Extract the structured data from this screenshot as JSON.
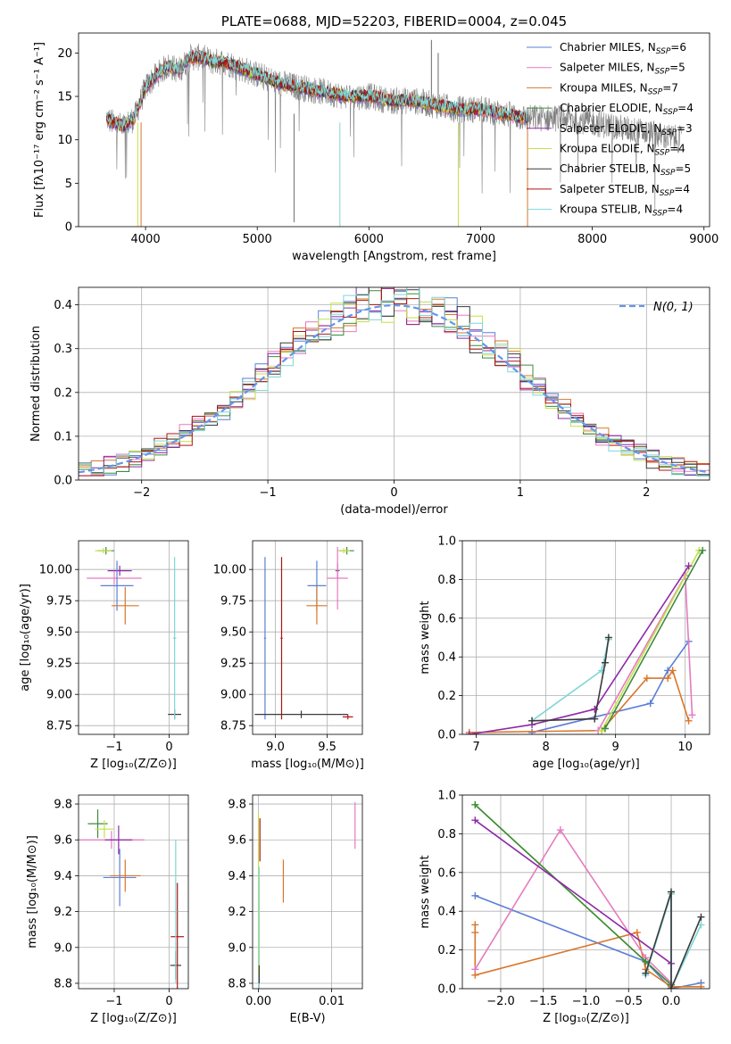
{
  "colors": {
    "chabrier_miles": "#5b7fd6",
    "salpeter_miles": "#e57bbf",
    "kroupa_miles": "#d9762a",
    "chabrier_elodie": "#3d8b3d",
    "salpeter_elodie": "#8e2aa8",
    "kroupa_elodie": "#c3e04a",
    "chabrier_stelib": "#3a3a3a",
    "salpeter_stelib": "#b01515",
    "kroupa_stelib": "#7fd6d6",
    "gaussian": "#6495ed",
    "data": "#808080"
  },
  "chart_data": [
    {
      "id": "spectrum",
      "type": "line",
      "title": "PLATE=0688, MJD=52203, FIBERID=0004, z=0.045",
      "xlabel": "wavelength [Angstrom, rest frame]",
      "ylabel": "Flux [fλ10⁻¹⁷ erg cm⁻² s⁻¹ A⁻¹]",
      "xlim": [
        3400,
        9050
      ],
      "ylim": [
        0,
        22.3
      ],
      "xticks": [
        "4000",
        "5000",
        "6000",
        "7000",
        "8000",
        "9000"
      ],
      "yticks": [
        "0",
        "5",
        "10",
        "15",
        "20"
      ],
      "legend_position": "top-right",
      "legend": [
        {
          "label": "Chabrier MILES, N",
          "sub": "SSP",
          "suffix": "=6",
          "color": "chabrier_miles"
        },
        {
          "label": "Salpeter MILES, N",
          "sub": "SSP",
          "suffix": "=5",
          "color": "salpeter_miles"
        },
        {
          "label": "Kroupa MILES, N",
          "sub": "SSP",
          "suffix": "=7",
          "color": "kroupa_miles"
        },
        {
          "label": "Chabrier ELODIE, N",
          "sub": "SSP",
          "suffix": "=4",
          "color": "chabrier_elodie"
        },
        {
          "label": "Salpeter ELODIE, N",
          "sub": "SSP",
          "suffix": "=3",
          "color": "salpeter_elodie"
        },
        {
          "label": "Kroupa ELODIE, N",
          "sub": "SSP",
          "suffix": "=4",
          "color": "kroupa_elodie"
        },
        {
          "label": "Chabrier STELIB, N",
          "sub": "SSP",
          "suffix": "=5",
          "color": "chabrier_stelib"
        },
        {
          "label": "Salpeter STELIB, N",
          "sub": "SSP",
          "suffix": "=4",
          "color": "salpeter_stelib"
        },
        {
          "label": "Kroupa STELIB, N",
          "sub": "SSP",
          "suffix": "=4",
          "color": "kroupa_stelib"
        }
      ],
      "continuum": {
        "x": [
          3650,
          3700,
          3800,
          3900,
          4000,
          4100,
          4200,
          4300,
          4400,
          4500,
          4600,
          4700,
          4800,
          4900,
          5000,
          5200,
          5400,
          5600,
          5800,
          6000,
          6200,
          6400,
          6600,
          6800,
          7000,
          7200,
          7400,
          7600,
          7800,
          8000,
          8200,
          8400,
          8600,
          8800
        ],
        "y": [
          12.5,
          12.0,
          11.5,
          12.5,
          16.0,
          17.5,
          18.5,
          18.0,
          19.5,
          19.5,
          19.0,
          19.0,
          18.5,
          18.0,
          17.5,
          16.5,
          16.0,
          15.5,
          15.0,
          15.0,
          14.5,
          14.5,
          14.0,
          13.5,
          13.5,
          13.0,
          12.5,
          12.5,
          12.5,
          12.0,
          11.5,
          11.0,
          10.5,
          10.0
        ]
      },
      "model_end": 7420
    },
    {
      "id": "residuals",
      "type": "histogram",
      "xlabel": "(data-model)/error",
      "ylabel": "Normed distribution",
      "xlim": [
        -2.5,
        2.5
      ],
      "ylim": [
        0,
        0.44
      ],
      "xticks": [
        "−2",
        "−1",
        "0",
        "1",
        "2"
      ],
      "yticks": [
        "0.0",
        "0.1",
        "0.2",
        "0.3",
        "0.4"
      ],
      "bin_width": 0.1,
      "legend_position": "top-right",
      "gaussian_label": "N(0, 1)"
    },
    {
      "id": "age_vs_Z",
      "type": "errorbar",
      "xlabel": "Z [log₁₀(Z/Z⊙)]",
      "ylabel": "age  [log₁₀(age/yr)]",
      "xlim": [
        -1.65,
        0.35
      ],
      "ylim": [
        8.68,
        10.23
      ],
      "xticks": [
        "−1",
        "0"
      ],
      "yticks": [
        "8.75",
        "9.00",
        "9.25",
        "9.50",
        "9.75",
        "10.00"
      ],
      "points": [
        {
          "x": -1.15,
          "y": 10.15,
          "xerr": 0.15,
          "yerr": 0.03,
          "color": "chabrier_elodie"
        },
        {
          "x": -1.2,
          "y": 10.15,
          "xerr": 0.15,
          "yerr": 0.02,
          "color": "kroupa_elodie"
        },
        {
          "x": -0.9,
          "y": 9.99,
          "xerr": 0.22,
          "yerr": 0.04,
          "color": "salpeter_elodie"
        },
        {
          "x": -1.0,
          "y": 9.93,
          "xerr": 0.5,
          "yerr": 0.05,
          "color": "salpeter_miles"
        },
        {
          "x": -0.95,
          "y": 9.87,
          "xerr": 0.3,
          "yerr": 0.2,
          "color": "chabrier_miles"
        },
        {
          "x": -0.8,
          "y": 9.71,
          "xerr": 0.25,
          "yerr": 0.15,
          "color": "kroupa_miles"
        },
        {
          "x": 0.1,
          "y": 8.84,
          "xerr": 0.12,
          "yerr": 0.04,
          "color": "chabrier_stelib"
        },
        {
          "x": 0.1,
          "y": 9.45,
          "xerr": 0.03,
          "yerr": 0.65,
          "color": "kroupa_stelib"
        }
      ]
    },
    {
      "id": "age_vs_mass",
      "type": "errorbar",
      "xlabel": "mass [log₁₀(M/M⊙)]",
      "ylabel": "",
      "xlim": [
        8.78,
        9.84
      ],
      "ylim": [
        8.68,
        10.23
      ],
      "xticks": [
        "9.0",
        "9.5"
      ],
      "yticks": [
        "8.75",
        "9.00",
        "9.25",
        "9.50",
        "9.75",
        "10.00"
      ],
      "points": [
        {
          "x": 9.69,
          "y": 10.15,
          "xerr": 0.07,
          "yerr": 0.03,
          "color": "chabrier_elodie"
        },
        {
          "x": 9.66,
          "y": 10.15,
          "xerr": 0.06,
          "yerr": 0.02,
          "color": "kroupa_elodie"
        },
        {
          "x": 9.6,
          "y": 9.99,
          "xerr": 0.02,
          "yerr": 0.06,
          "color": "salpeter_elodie"
        },
        {
          "x": 9.6,
          "y": 9.93,
          "xerr": 0.1,
          "yerr": 0.25,
          "color": "salpeter_miles"
        },
        {
          "x": 9.4,
          "y": 9.87,
          "xerr": 0.09,
          "yerr": 0.2,
          "color": "chabrier_miles"
        },
        {
          "x": 9.4,
          "y": 9.71,
          "xerr": 0.1,
          "yerr": 0.15,
          "color": "kroupa_miles"
        },
        {
          "x": 9.06,
          "y": 9.45,
          "xerr": 0.01,
          "yerr": 0.65,
          "color": "salpeter_stelib"
        },
        {
          "x": 8.9,
          "y": 9.45,
          "xerr": 0.01,
          "yerr": 0.65,
          "color": "chabrier_miles"
        },
        {
          "x": 9.25,
          "y": 8.84,
          "xerr": 0.45,
          "yerr": 0.03,
          "color": "chabrier_stelib"
        },
        {
          "x": 9.7,
          "y": 8.82,
          "xerr": 0.05,
          "yerr": 0.02,
          "color": "salpeter_stelib"
        }
      ]
    },
    {
      "id": "weight_vs_age",
      "type": "line",
      "xlabel": "age  [log₁₀(age/yr)]",
      "ylabel": "mass weight",
      "xlim": [
        6.8,
        10.35
      ],
      "ylim": [
        0,
        1.0
      ],
      "xticks": [
        "7",
        "8",
        "9",
        "10"
      ],
      "yticks": [
        "0.0",
        "0.2",
        "0.4",
        "0.6",
        "0.8",
        "1.0"
      ],
      "series": [
        {
          "color": "chabrier_miles",
          "x": [
            7.8,
            9.5,
            9.75,
            10.05
          ],
          "y": [
            0.01,
            0.16,
            0.33,
            0.48
          ]
        },
        {
          "color": "kroupa_miles",
          "x": [
            6.9,
            8.8,
            9.45,
            9.75,
            9.82,
            10.05
          ],
          "y": [
            0.01,
            0.02,
            0.29,
            0.29,
            0.33,
            0.07
          ]
        },
        {
          "color": "salpeter_miles",
          "x": [
            8.75,
            10.0,
            10.1
          ],
          "y": [
            0.02,
            0.82,
            0.1
          ]
        },
        {
          "color": "kroupa_elodie",
          "x": [
            8.8,
            10.2
          ],
          "y": [
            0.02,
            0.95
          ]
        },
        {
          "color": "chabrier_elodie",
          "x": [
            8.85,
            10.25
          ],
          "y": [
            0.03,
            0.95
          ]
        },
        {
          "color": "salpeter_elodie",
          "x": [
            6.9,
            7.8,
            8.7,
            10.05
          ],
          "y": [
            0.0,
            0.05,
            0.13,
            0.87
          ]
        },
        {
          "color": "kroupa_stelib",
          "x": [
            7.8,
            8.8,
            8.9
          ],
          "y": [
            0.07,
            0.33,
            0.49
          ]
        },
        {
          "color": "chabrier_stelib",
          "x": [
            7.8,
            8.7,
            8.85,
            8.9
          ],
          "y": [
            0.07,
            0.08,
            0.37,
            0.5
          ]
        }
      ]
    },
    {
      "id": "mass_vs_Z",
      "type": "errorbar",
      "xlabel": "Z [log₁₀(Z/Z⊙)]",
      "ylabel": "mass [log₁₀(M/M⊙)]",
      "xlim": [
        -1.65,
        0.35
      ],
      "ylim": [
        8.77,
        9.85
      ],
      "xticks": [
        "−1",
        "0"
      ],
      "yticks": [
        "8.8",
        "9.0",
        "9.2",
        "9.4",
        "9.6",
        "9.8"
      ],
      "points": [
        {
          "x": -1.3,
          "y": 9.69,
          "xerr": 0.18,
          "yerr": 0.08,
          "color": "chabrier_elodie"
        },
        {
          "x": -1.18,
          "y": 9.66,
          "xerr": 0.17,
          "yerr": 0.05,
          "color": "kroupa_elodie"
        },
        {
          "x": -1.05,
          "y": 9.6,
          "xerr": 0.6,
          "yerr": 0.05,
          "color": "salpeter_miles"
        },
        {
          "x": -0.92,
          "y": 9.6,
          "xerr": 0.25,
          "yerr": 0.08,
          "color": "salpeter_elodie"
        },
        {
          "x": -0.9,
          "y": 9.39,
          "xerr": 0.3,
          "yerr": 0.16,
          "color": "chabrier_miles"
        },
        {
          "x": -0.8,
          "y": 9.4,
          "xerr": 0.28,
          "yerr": 0.09,
          "color": "kroupa_miles"
        },
        {
          "x": 0.15,
          "y": 9.06,
          "xerr": 0.12,
          "yerr": 0.3,
          "color": "salpeter_stelib"
        },
        {
          "x": 0.12,
          "y": 8.9,
          "xerr": 0.1,
          "yerr": 0.08,
          "color": "chabrier_stelib"
        },
        {
          "x": 0.12,
          "y": 9.2,
          "xerr": 0.03,
          "yerr": 0.4,
          "color": "kroupa_stelib"
        }
      ]
    },
    {
      "id": "mass_vs_ebv",
      "type": "errorbar",
      "xlabel": "E(B-V)",
      "ylabel": "",
      "xlim": [
        -0.0008,
        0.0142
      ],
      "ylim": [
        8.77,
        9.85
      ],
      "xticks": [
        "0.00",
        "0.01"
      ],
      "yticks": [
        "8.8",
        "9.0",
        "9.2",
        "9.4",
        "9.6",
        "9.8"
      ],
      "points": [
        {
          "x": 0.0,
          "y": 9.3,
          "xerr": 0.0,
          "yerr": 0.45,
          "color": "kroupa_elodie"
        },
        {
          "x": 0.0002,
          "y": 9.6,
          "xerr": 0.0,
          "yerr": 0.12,
          "color": "salpeter_stelib"
        },
        {
          "x": 0.0001,
          "y": 9.1,
          "xerr": 0.0,
          "yerr": 0.35,
          "color": "kroupa_stelib"
        },
        {
          "x": 0.0001,
          "y": 8.85,
          "xerr": 0.0,
          "yerr": 0.05,
          "color": "chabrier_stelib"
        },
        {
          "x": 0.0034,
          "y": 9.37,
          "xerr": 0.0,
          "yerr": 0.12,
          "color": "kroupa_miles"
        },
        {
          "x": 0.0132,
          "y": 9.68,
          "xerr": 0.0,
          "yerr": 0.13,
          "color": "salpeter_miles"
        }
      ]
    },
    {
      "id": "weight_vs_Z",
      "type": "line",
      "xlabel": "Z [log₁₀(Z/Z⊙)]",
      "ylabel": "mass weight",
      "xlim": [
        -2.45,
        0.45
      ],
      "ylim": [
        0,
        1.0
      ],
      "xticks": [
        "−2.0",
        "−1.5",
        "−1.0",
        "−0.5",
        "0.0"
      ],
      "yticks": [
        "0.0",
        "0.2",
        "0.4",
        "0.6",
        "0.8",
        "1.0"
      ],
      "series": [
        {
          "color": "chabrier_miles",
          "x": [
            -2.3,
            -0.3,
            0.0,
            0.0,
            0.0,
            0.35
          ],
          "y": [
            0.48,
            0.14,
            0.0,
            0.49,
            0.0,
            0.03
          ]
        },
        {
          "color": "kroupa_miles",
          "x": [
            -2.3,
            -2.3,
            -2.3,
            -0.4,
            -0.3,
            0.0,
            0.35
          ],
          "y": [
            0.33,
            0.29,
            0.07,
            0.29,
            0.1,
            0.01,
            0.01
          ]
        },
        {
          "color": "salpeter_miles",
          "x": [
            -2.3,
            -1.3,
            -0.3,
            0.0
          ],
          "y": [
            0.1,
            0.82,
            0.16,
            0.03
          ]
        },
        {
          "color": "kroupa_elodie",
          "x": [
            -2.3,
            0.0
          ],
          "y": [
            0.95,
            0.02
          ]
        },
        {
          "color": "chabrier_elodie",
          "x": [
            -2.3,
            -0.3,
            0.0
          ],
          "y": [
            0.95,
            0.14,
            0.02
          ]
        },
        {
          "color": "salpeter_elodie",
          "x": [
            -2.3,
            0.0,
            0.0
          ],
          "y": [
            0.87,
            0.13,
            0.0
          ]
        },
        {
          "color": "kroupa_stelib",
          "x": [
            -0.3,
            0.0,
            0.0,
            0.35
          ],
          "y": [
            0.07,
            0.49,
            0.0,
            0.33
          ]
        },
        {
          "color": "chabrier_stelib",
          "x": [
            -0.3,
            0.0,
            0.0,
            0.35
          ],
          "y": [
            0.08,
            0.5,
            0.0,
            0.37
          ]
        }
      ]
    }
  ]
}
